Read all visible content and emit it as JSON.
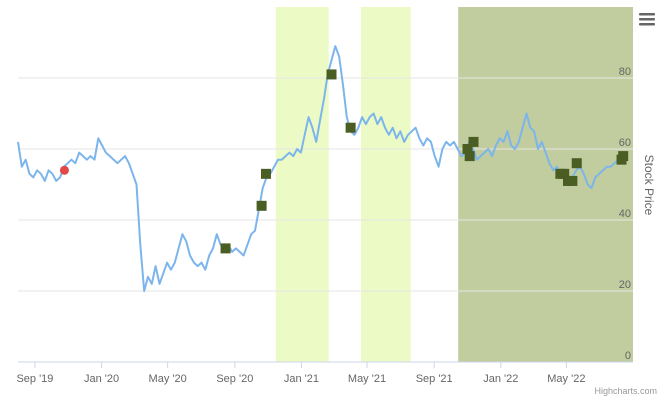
{
  "credits": "Highcharts.com",
  "menu_icon": "hamburger-menu-icon",
  "chart_data": {
    "type": "line",
    "title": "",
    "xlabel": "",
    "ylabel": "Stock Price",
    "y_axis_side": "right",
    "xlim": [
      "2019-08-01",
      "2022-08-31"
    ],
    "ylim": [
      0,
      100
    ],
    "y_ticks": [
      0,
      20,
      40,
      60,
      80
    ],
    "x_ticks": [
      {
        "date": "2019-09-01",
        "label": "Sep '19"
      },
      {
        "date": "2020-01-01",
        "label": "Jan '20"
      },
      {
        "date": "2020-05-01",
        "label": "May '20"
      },
      {
        "date": "2020-09-01",
        "label": "Sep '20"
      },
      {
        "date": "2021-01-01",
        "label": "Jan '21"
      },
      {
        "date": "2021-05-01",
        "label": "May '21"
      },
      {
        "date": "2021-09-01",
        "label": "Sep '21"
      },
      {
        "date": "2022-01-01",
        "label": "Jan '22"
      },
      {
        "date": "2022-05-01",
        "label": "May '22"
      }
    ],
    "grid": true,
    "colors": {
      "line": "#7cb5ec",
      "light_band": "#ecfbc6",
      "dark_band": "#c1cc9f",
      "square_marker": "#4a5e23",
      "circle_marker": "#e14848",
      "grid": "#e6e6e6"
    },
    "bands": [
      {
        "from": "2020-11-15",
        "to": "2021-02-20",
        "style": "light"
      },
      {
        "from": "2021-04-20",
        "to": "2021-07-20",
        "style": "light"
      },
      {
        "from": "2021-10-15",
        "to": "2022-08-31",
        "style": "dark"
      }
    ],
    "series": [
      {
        "values": [
          [
            "2019-08-01",
            62
          ],
          [
            "2019-08-08",
            55
          ],
          [
            "2019-08-15",
            57
          ],
          [
            "2019-08-22",
            53
          ],
          [
            "2019-08-29",
            52
          ],
          [
            "2019-09-05",
            54
          ],
          [
            "2019-09-12",
            53
          ],
          [
            "2019-09-19",
            51
          ],
          [
            "2019-09-26",
            54
          ],
          [
            "2019-10-03",
            53
          ],
          [
            "2019-10-10",
            51
          ],
          [
            "2019-10-17",
            52
          ],
          [
            "2019-10-24",
            55
          ],
          [
            "2019-10-31",
            56
          ],
          [
            "2019-11-07",
            57
          ],
          [
            "2019-11-14",
            56
          ],
          [
            "2019-11-21",
            59
          ],
          [
            "2019-11-28",
            58
          ],
          [
            "2019-12-05",
            57
          ],
          [
            "2019-12-12",
            58
          ],
          [
            "2019-12-19",
            57
          ],
          [
            "2019-12-26",
            63
          ],
          [
            "2020-01-02",
            61
          ],
          [
            "2020-01-09",
            59
          ],
          [
            "2020-01-16",
            58
          ],
          [
            "2020-01-23",
            57
          ],
          [
            "2020-01-30",
            56
          ],
          [
            "2020-02-06",
            57
          ],
          [
            "2020-02-13",
            58
          ],
          [
            "2020-02-20",
            56
          ],
          [
            "2020-02-27",
            53
          ],
          [
            "2020-03-05",
            50
          ],
          [
            "2020-03-12",
            33
          ],
          [
            "2020-03-19",
            20
          ],
          [
            "2020-03-26",
            24
          ],
          [
            "2020-04-02",
            22
          ],
          [
            "2020-04-09",
            27
          ],
          [
            "2020-04-16",
            22
          ],
          [
            "2020-04-23",
            25
          ],
          [
            "2020-04-30",
            28
          ],
          [
            "2020-05-07",
            26
          ],
          [
            "2020-05-14",
            28
          ],
          [
            "2020-05-21",
            32
          ],
          [
            "2020-05-28",
            36
          ],
          [
            "2020-06-04",
            34
          ],
          [
            "2020-06-11",
            30
          ],
          [
            "2020-06-18",
            28
          ],
          [
            "2020-06-25",
            27
          ],
          [
            "2020-07-02",
            28
          ],
          [
            "2020-07-09",
            26
          ],
          [
            "2020-07-16",
            30
          ],
          [
            "2020-07-23",
            32
          ],
          [
            "2020-07-30",
            36
          ],
          [
            "2020-08-06",
            33
          ],
          [
            "2020-08-13",
            32
          ],
          [
            "2020-08-20",
            33
          ],
          [
            "2020-08-27",
            31
          ],
          [
            "2020-09-03",
            32
          ],
          [
            "2020-09-10",
            31
          ],
          [
            "2020-09-17",
            30
          ],
          [
            "2020-09-24",
            33
          ],
          [
            "2020-10-01",
            36
          ],
          [
            "2020-10-08",
            37
          ],
          [
            "2020-10-15",
            43
          ],
          [
            "2020-10-22",
            49
          ],
          [
            "2020-10-29",
            52
          ],
          [
            "2020-11-05",
            53
          ],
          [
            "2020-11-12",
            55
          ],
          [
            "2020-11-19",
            57
          ],
          [
            "2020-11-26",
            57
          ],
          [
            "2020-12-03",
            58
          ],
          [
            "2020-12-10",
            59
          ],
          [
            "2020-12-17",
            58
          ],
          [
            "2020-12-24",
            60
          ],
          [
            "2020-12-31",
            59
          ],
          [
            "2021-01-07",
            64
          ],
          [
            "2021-01-14",
            69
          ],
          [
            "2021-01-21",
            66
          ],
          [
            "2021-01-28",
            62
          ],
          [
            "2021-02-04",
            68
          ],
          [
            "2021-02-11",
            74
          ],
          [
            "2021-02-18",
            81
          ],
          [
            "2021-02-25",
            85
          ],
          [
            "2021-03-04",
            89
          ],
          [
            "2021-03-11",
            86
          ],
          [
            "2021-03-18",
            78
          ],
          [
            "2021-03-25",
            69
          ],
          [
            "2021-04-01",
            65
          ],
          [
            "2021-04-08",
            64
          ],
          [
            "2021-04-15",
            66
          ],
          [
            "2021-04-22",
            69
          ],
          [
            "2021-04-29",
            67
          ],
          [
            "2021-05-06",
            69
          ],
          [
            "2021-05-13",
            70
          ],
          [
            "2021-05-20",
            67
          ],
          [
            "2021-05-27",
            69
          ],
          [
            "2021-06-03",
            66
          ],
          [
            "2021-06-10",
            64
          ],
          [
            "2021-06-17",
            66
          ],
          [
            "2021-06-24",
            63
          ],
          [
            "2021-07-01",
            65
          ],
          [
            "2021-07-08",
            62
          ],
          [
            "2021-07-15",
            64
          ],
          [
            "2021-07-22",
            65
          ],
          [
            "2021-07-29",
            66
          ],
          [
            "2021-08-05",
            63
          ],
          [
            "2021-08-12",
            61
          ],
          [
            "2021-08-19",
            63
          ],
          [
            "2021-08-26",
            62
          ],
          [
            "2021-09-02",
            58
          ],
          [
            "2021-09-09",
            55
          ],
          [
            "2021-09-16",
            60
          ],
          [
            "2021-09-23",
            62
          ],
          [
            "2021-09-30",
            61
          ],
          [
            "2021-10-07",
            62
          ],
          [
            "2021-10-14",
            60
          ],
          [
            "2021-10-21",
            58
          ],
          [
            "2021-10-28",
            59
          ],
          [
            "2021-11-04",
            62
          ],
          [
            "2021-11-11",
            60
          ],
          [
            "2021-11-18",
            57
          ],
          [
            "2021-11-25",
            58
          ],
          [
            "2021-12-02",
            59
          ],
          [
            "2021-12-09",
            60
          ],
          [
            "2021-12-16",
            58
          ],
          [
            "2021-12-23",
            61
          ],
          [
            "2021-12-30",
            63
          ],
          [
            "2022-01-06",
            62
          ],
          [
            "2022-01-13",
            65
          ],
          [
            "2022-01-20",
            61
          ],
          [
            "2022-01-27",
            60
          ],
          [
            "2022-02-03",
            62
          ],
          [
            "2022-02-10",
            66
          ],
          [
            "2022-02-17",
            70
          ],
          [
            "2022-02-24",
            66
          ],
          [
            "2022-03-03",
            65
          ],
          [
            "2022-03-10",
            60
          ],
          [
            "2022-03-17",
            62
          ],
          [
            "2022-03-24",
            59
          ],
          [
            "2022-03-31",
            56
          ],
          [
            "2022-04-07",
            54
          ],
          [
            "2022-04-14",
            55
          ],
          [
            "2022-04-21",
            52
          ],
          [
            "2022-04-28",
            53
          ],
          [
            "2022-05-05",
            51
          ],
          [
            "2022-05-12",
            52
          ],
          [
            "2022-05-19",
            54
          ],
          [
            "2022-05-26",
            55
          ],
          [
            "2022-06-02",
            53
          ],
          [
            "2022-06-09",
            50
          ],
          [
            "2022-06-16",
            49
          ],
          [
            "2022-06-23",
            52
          ],
          [
            "2022-06-30",
            53
          ],
          [
            "2022-07-07",
            54
          ],
          [
            "2022-07-14",
            55
          ],
          [
            "2022-07-21",
            55
          ],
          [
            "2022-07-28",
            56
          ],
          [
            "2022-08-04",
            57
          ],
          [
            "2022-08-11",
            57
          ]
        ]
      }
    ],
    "square_markers": [
      [
        "2020-08-15",
        32
      ],
      [
        "2020-10-20",
        44
      ],
      [
        "2020-10-28",
        53
      ],
      [
        "2021-02-25",
        81
      ],
      [
        "2021-04-01",
        66
      ],
      [
        "2021-11-01",
        60
      ],
      [
        "2021-11-05",
        58
      ],
      [
        "2021-11-12",
        62
      ],
      [
        "2022-04-20",
        53
      ],
      [
        "2022-04-27",
        53
      ],
      [
        "2022-05-04",
        51
      ],
      [
        "2022-05-12",
        51
      ],
      [
        "2022-05-20",
        56
      ],
      [
        "2022-08-10",
        57
      ],
      [
        "2022-08-13",
        58
      ]
    ],
    "circle_markers": [
      [
        "2019-10-25",
        54
      ]
    ]
  }
}
